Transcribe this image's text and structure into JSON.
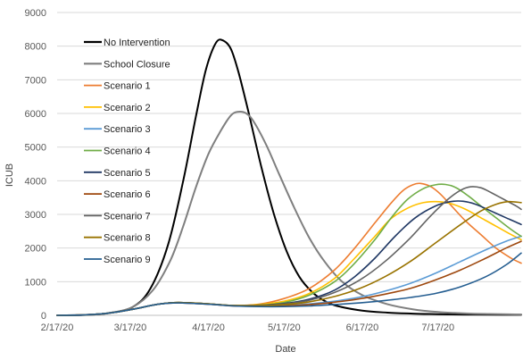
{
  "chart_data": {
    "type": "line",
    "title": "",
    "xlabel": "Date",
    "ylabel": "ICUB",
    "x_tick_labels": [
      "2/17/20",
      "3/17/20",
      "4/17/20",
      "5/17/20",
      "6/17/20",
      "7/17/20"
    ],
    "x_tick_days": [
      0,
      29,
      60,
      90,
      121,
      151
    ],
    "xlim_days": [
      0,
      184
    ],
    "y_ticks": [
      0,
      1000,
      2000,
      3000,
      4000,
      5000,
      6000,
      7000,
      8000,
      9000
    ],
    "ylim": [
      0,
      9000
    ],
    "grid": "horizontal",
    "legend_position": "left",
    "series": [
      {
        "name": "No Intervention",
        "color": "#000000",
        "points": [
          [
            0,
            0
          ],
          [
            10,
            10
          ],
          [
            20,
            60
          ],
          [
            30,
            250
          ],
          [
            37,
            800
          ],
          [
            44,
            2100
          ],
          [
            50,
            4000
          ],
          [
            55,
            5900
          ],
          [
            59,
            7300
          ],
          [
            63,
            8100
          ],
          [
            66,
            8160
          ],
          [
            69,
            7900
          ],
          [
            72,
            7200
          ],
          [
            76,
            6000
          ],
          [
            81,
            4400
          ],
          [
            86,
            3000
          ],
          [
            91,
            1900
          ],
          [
            96,
            1150
          ],
          [
            101,
            700
          ],
          [
            106,
            430
          ],
          [
            111,
            280
          ],
          [
            121,
            140
          ],
          [
            131,
            80
          ],
          [
            141,
            50
          ],
          [
            151,
            35
          ],
          [
            161,
            25
          ],
          [
            171,
            20
          ],
          [
            184,
            15
          ]
        ]
      },
      {
        "name": "School Closure",
        "color": "#7f7f7f",
        "points": [
          [
            0,
            0
          ],
          [
            10,
            10
          ],
          [
            20,
            60
          ],
          [
            30,
            250
          ],
          [
            38,
            750
          ],
          [
            45,
            1650
          ],
          [
            50,
            2650
          ],
          [
            55,
            3800
          ],
          [
            60,
            4800
          ],
          [
            65,
            5500
          ],
          [
            69,
            5950
          ],
          [
            72,
            6050
          ],
          [
            75,
            6000
          ],
          [
            78,
            5750
          ],
          [
            83,
            5050
          ],
          [
            88,
            4200
          ],
          [
            94,
            3200
          ],
          [
            100,
            2300
          ],
          [
            106,
            1600
          ],
          [
            113,
            1000
          ],
          [
            121,
            600
          ],
          [
            131,
            330
          ],
          [
            141,
            180
          ],
          [
            151,
            100
          ],
          [
            161,
            60
          ],
          [
            171,
            40
          ],
          [
            184,
            25
          ]
        ]
      },
      {
        "name": "Scenario 1",
        "color": "#ed7d31",
        "points": [
          [
            0,
            0
          ],
          [
            10,
            10
          ],
          [
            20,
            60
          ],
          [
            30,
            180
          ],
          [
            40,
            330
          ],
          [
            48,
            380
          ],
          [
            60,
            340
          ],
          [
            70,
            290
          ],
          [
            80,
            330
          ],
          [
            90,
            500
          ],
          [
            100,
            800
          ],
          [
            110,
            1350
          ],
          [
            118,
            2000
          ],
          [
            126,
            2750
          ],
          [
            132,
            3300
          ],
          [
            137,
            3700
          ],
          [
            141,
            3880
          ],
          [
            144,
            3920
          ],
          [
            148,
            3830
          ],
          [
            152,
            3600
          ],
          [
            157,
            3200
          ],
          [
            162,
            2800
          ],
          [
            168,
            2400
          ],
          [
            174,
            2000
          ],
          [
            180,
            1700
          ],
          [
            184,
            1550
          ]
        ]
      },
      {
        "name": "Scenario 2",
        "color": "#ffc000",
        "points": [
          [
            0,
            0
          ],
          [
            10,
            10
          ],
          [
            20,
            60
          ],
          [
            30,
            180
          ],
          [
            40,
            330
          ],
          [
            48,
            380
          ],
          [
            60,
            340
          ],
          [
            70,
            290
          ],
          [
            80,
            320
          ],
          [
            90,
            420
          ],
          [
            100,
            650
          ],
          [
            110,
            1100
          ],
          [
            118,
            1700
          ],
          [
            126,
            2350
          ],
          [
            132,
            2850
          ],
          [
            138,
            3150
          ],
          [
            144,
            3330
          ],
          [
            150,
            3380
          ],
          [
            156,
            3320
          ],
          [
            162,
            3150
          ],
          [
            168,
            2900
          ],
          [
            174,
            2650
          ],
          [
            180,
            2400
          ],
          [
            184,
            2250
          ]
        ]
      },
      {
        "name": "Scenario 3",
        "color": "#5b9bd5",
        "points": [
          [
            0,
            0
          ],
          [
            10,
            10
          ],
          [
            20,
            60
          ],
          [
            30,
            180
          ],
          [
            40,
            330
          ],
          [
            48,
            370
          ],
          [
            60,
            330
          ],
          [
            70,
            280
          ],
          [
            80,
            270
          ],
          [
            90,
            290
          ],
          [
            100,
            340
          ],
          [
            110,
            420
          ],
          [
            120,
            540
          ],
          [
            130,
            720
          ],
          [
            140,
            950
          ],
          [
            150,
            1250
          ],
          [
            160,
            1600
          ],
          [
            170,
            1950
          ],
          [
            178,
            2200
          ],
          [
            184,
            2350
          ]
        ]
      },
      {
        "name": "Scenario 4",
        "color": "#70ad47",
        "points": [
          [
            0,
            0
          ],
          [
            10,
            10
          ],
          [
            20,
            60
          ],
          [
            30,
            180
          ],
          [
            40,
            330
          ],
          [
            48,
            380
          ],
          [
            60,
            340
          ],
          [
            70,
            290
          ],
          [
            80,
            300
          ],
          [
            90,
            380
          ],
          [
            100,
            600
          ],
          [
            110,
            1000
          ],
          [
            118,
            1550
          ],
          [
            126,
            2250
          ],
          [
            133,
            2950
          ],
          [
            139,
            3450
          ],
          [
            145,
            3760
          ],
          [
            150,
            3880
          ],
          [
            154,
            3890
          ],
          [
            158,
            3800
          ],
          [
            163,
            3550
          ],
          [
            168,
            3250
          ],
          [
            174,
            2900
          ],
          [
            180,
            2550
          ],
          [
            184,
            2350
          ]
        ]
      },
      {
        "name": "Scenario 5",
        "color": "#203864",
        "points": [
          [
            0,
            0
          ],
          [
            10,
            10
          ],
          [
            20,
            60
          ],
          [
            30,
            180
          ],
          [
            40,
            330
          ],
          [
            48,
            380
          ],
          [
            60,
            340
          ],
          [
            70,
            290
          ],
          [
            80,
            300
          ],
          [
            90,
            350
          ],
          [
            100,
            480
          ],
          [
            110,
            750
          ],
          [
            118,
            1150
          ],
          [
            126,
            1700
          ],
          [
            134,
            2350
          ],
          [
            142,
            2900
          ],
          [
            150,
            3250
          ],
          [
            156,
            3380
          ],
          [
            161,
            3390
          ],
          [
            166,
            3300
          ],
          [
            172,
            3100
          ],
          [
            178,
            2900
          ],
          [
            184,
            2700
          ]
        ]
      },
      {
        "name": "Scenario 6",
        "color": "#9e480e",
        "points": [
          [
            0,
            0
          ],
          [
            10,
            10
          ],
          [
            20,
            60
          ],
          [
            30,
            180
          ],
          [
            40,
            330
          ],
          [
            48,
            370
          ],
          [
            60,
            330
          ],
          [
            70,
            280
          ],
          [
            80,
            270
          ],
          [
            90,
            280
          ],
          [
            100,
            320
          ],
          [
            110,
            390
          ],
          [
            120,
            490
          ],
          [
            130,
            630
          ],
          [
            140,
            800
          ],
          [
            150,
            1050
          ],
          [
            160,
            1350
          ],
          [
            170,
            1700
          ],
          [
            178,
            2000
          ],
          [
            184,
            2200
          ]
        ]
      },
      {
        "name": "Scenario 7",
        "color": "#636363",
        "points": [
          [
            0,
            0
          ],
          [
            10,
            10
          ],
          [
            20,
            60
          ],
          [
            30,
            180
          ],
          [
            40,
            330
          ],
          [
            48,
            380
          ],
          [
            60,
            340
          ],
          [
            70,
            290
          ],
          [
            80,
            300
          ],
          [
            90,
            340
          ],
          [
            100,
            450
          ],
          [
            110,
            680
          ],
          [
            120,
            1050
          ],
          [
            130,
            1600
          ],
          [
            140,
            2300
          ],
          [
            148,
            2950
          ],
          [
            155,
            3450
          ],
          [
            160,
            3720
          ],
          [
            164,
            3820
          ],
          [
            168,
            3790
          ],
          [
            172,
            3650
          ],
          [
            177,
            3450
          ],
          [
            182,
            3250
          ],
          [
            184,
            3150
          ]
        ]
      },
      {
        "name": "Scenario 8",
        "color": "#997300",
        "points": [
          [
            0,
            0
          ],
          [
            10,
            10
          ],
          [
            20,
            60
          ],
          [
            30,
            180
          ],
          [
            40,
            330
          ],
          [
            48,
            380
          ],
          [
            60,
            340
          ],
          [
            70,
            290
          ],
          [
            80,
            290
          ],
          [
            90,
            320
          ],
          [
            100,
            400
          ],
          [
            110,
            560
          ],
          [
            120,
            800
          ],
          [
            130,
            1150
          ],
          [
            140,
            1600
          ],
          [
            150,
            2150
          ],
          [
            160,
            2700
          ],
          [
            168,
            3100
          ],
          [
            174,
            3300
          ],
          [
            179,
            3380
          ],
          [
            184,
            3350
          ]
        ]
      },
      {
        "name": "Scenario 9",
        "color": "#255e91",
        "points": [
          [
            0,
            0
          ],
          [
            10,
            10
          ],
          [
            20,
            60
          ],
          [
            30,
            180
          ],
          [
            40,
            330
          ],
          [
            48,
            370
          ],
          [
            60,
            330
          ],
          [
            70,
            280
          ],
          [
            80,
            260
          ],
          [
            90,
            260
          ],
          [
            100,
            280
          ],
          [
            110,
            320
          ],
          [
            120,
            370
          ],
          [
            130,
            440
          ],
          [
            140,
            530
          ],
          [
            150,
            650
          ],
          [
            160,
            850
          ],
          [
            170,
            1150
          ],
          [
            178,
            1500
          ],
          [
            184,
            1850
          ]
        ]
      }
    ]
  }
}
